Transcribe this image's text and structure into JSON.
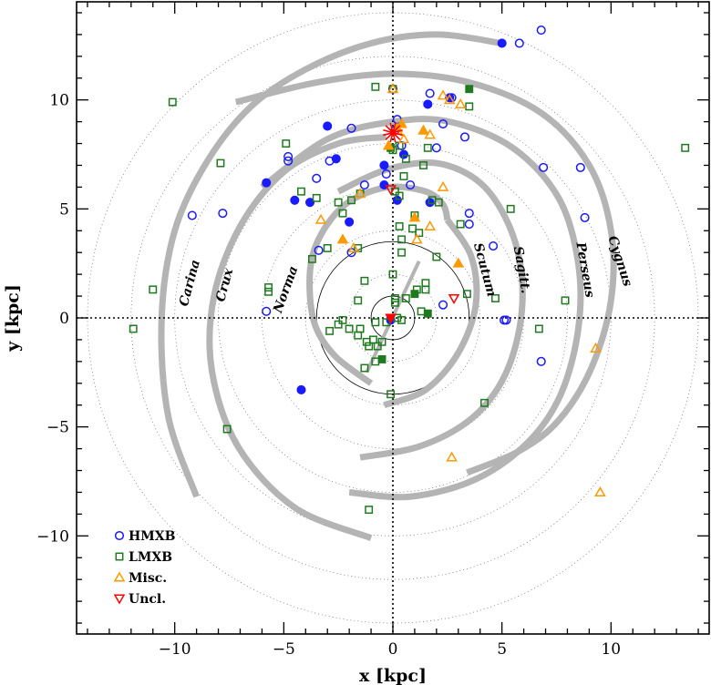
{
  "chart_data": {
    "type": "scatter",
    "title": "",
    "xlabel": "x [kpc]",
    "ylabel": "y [kpc]",
    "xlim": [
      -14.5,
      14.5
    ],
    "ylim": [
      -14.5,
      14.5
    ],
    "xticks": [
      -10,
      -5,
      0,
      5,
      10
    ],
    "yticks": [
      -10,
      -5,
      0,
      5,
      10
    ],
    "grid": false,
    "legend_position": "bottom-left",
    "colors": {
      "HMXB": "#1a1aff",
      "LMXB": "#1f7a1f",
      "Misc": "#ff9900",
      "Uncl": "#ff0000",
      "arms": "#b4b4b4",
      "sun": "#ff0000"
    },
    "sun_position": [
      0,
      8.5
    ],
    "dotted_circle_radii": [
      2,
      4,
      6,
      8,
      10,
      12,
      14
    ],
    "solid_circle_radii": [
      1,
      3.5
    ],
    "arms": [
      {
        "name": "Carina",
        "label_at": [
          -9.3,
          1.6
        ],
        "points": [
          [
            -9.0,
            -8.2
          ],
          [
            -10.3,
            -4.5
          ],
          [
            -10.6,
            0.0
          ],
          [
            -10.0,
            4.0
          ],
          [
            -8.5,
            7.2
          ],
          [
            -6.5,
            9.7
          ],
          [
            -4.0,
            11.4
          ],
          [
            -1.0,
            12.6
          ],
          [
            2.0,
            13.0
          ],
          [
            5.0,
            12.6
          ]
        ]
      },
      {
        "name": "Crux",
        "label_at": [
          -7.7,
          1.5
        ],
        "points": [
          [
            -1.0,
            -10.1
          ],
          [
            -4.5,
            -8.7
          ],
          [
            -7.1,
            -5.9
          ],
          [
            -8.3,
            -2.4
          ],
          [
            -8.2,
            1.0
          ],
          [
            -7.0,
            4.2
          ],
          [
            -5.0,
            6.7
          ],
          [
            -2.5,
            8.0
          ],
          [
            -0.3,
            8.3
          ]
        ]
      },
      {
        "name": "Norma",
        "label_at": [
          -4.9,
          1.3
        ],
        "points": [
          [
            -1.0,
            -3.0
          ],
          [
            -2.6,
            -1.8
          ],
          [
            -3.5,
            -0.5
          ],
          [
            -3.8,
            1.0
          ],
          [
            -3.7,
            2.8
          ],
          [
            -3.0,
            4.3
          ],
          [
            -1.9,
            5.4
          ],
          [
            -0.2,
            6.0
          ],
          [
            1.5,
            5.8
          ],
          [
            2.3,
            5.2
          ],
          [
            2.5,
            4.5
          ]
        ]
      },
      {
        "name": "Scutum",
        "label_at": [
          4.2,
          2.2
        ],
        "points": [
          [
            2.5,
            4.5
          ],
          [
            3.6,
            2.8
          ],
          [
            3.8,
            0.6
          ],
          [
            3.0,
            -1.6
          ],
          [
            1.5,
            -3.3
          ],
          [
            -0.4,
            -4.0
          ]
        ]
      },
      {
        "name": "Sagitt.",
        "label_at": [
          5.9,
          2.2
        ],
        "points": [
          [
            -2.5,
            5.8
          ],
          [
            -0.3,
            6.8
          ],
          [
            2.0,
            7.1
          ],
          [
            4.0,
            6.2
          ],
          [
            5.3,
            4.3
          ],
          [
            5.9,
            2.0
          ],
          [
            5.8,
            -0.5
          ],
          [
            5.0,
            -2.9
          ],
          [
            3.5,
            -4.7
          ],
          [
            1.2,
            -5.9
          ],
          [
            -1.5,
            -6.4
          ]
        ]
      },
      {
        "name": "Perseus",
        "label_at": [
          8.8,
          2.2
        ],
        "points": [
          [
            -6.0,
            6.0
          ],
          [
            -3.0,
            8.2
          ],
          [
            0.0,
            9.0
          ],
          [
            2.6,
            9.0
          ],
          [
            5.5,
            7.8
          ],
          [
            7.6,
            5.5
          ],
          [
            8.5,
            2.5
          ],
          [
            8.5,
            -0.5
          ],
          [
            7.7,
            -3.5
          ],
          [
            6.2,
            -5.7
          ],
          [
            3.8,
            -7.4
          ],
          [
            0.8,
            -8.2
          ],
          [
            -2.0,
            -8.0
          ]
        ]
      },
      {
        "name": "Cygnus",
        "label_at": [
          10.4,
          2.6
        ],
        "points": [
          [
            -7.2,
            9.9
          ],
          [
            -3.5,
            10.8
          ],
          [
            0.0,
            11.2
          ],
          [
            3.5,
            10.8
          ],
          [
            6.8,
            9.4
          ],
          [
            9.0,
            7.0
          ],
          [
            10.0,
            4.0
          ],
          [
            10.0,
            0.8
          ],
          [
            9.1,
            -2.3
          ],
          [
            7.6,
            -4.7
          ],
          [
            5.8,
            -6.1
          ],
          [
            3.4,
            -7.1
          ]
        ]
      }
    ],
    "bar": {
      "points": [
        [
          -1.2,
          -2.5
        ],
        [
          1.2,
          2.6
        ]
      ]
    },
    "legend": [
      {
        "key": "HMXB",
        "label": "HMXB",
        "marker": "circle"
      },
      {
        "key": "LMXB",
        "label": "LMXB",
        "marker": "square"
      },
      {
        "key": "Misc",
        "label": "Misc.",
        "marker": "triangle-up"
      },
      {
        "key": "Uncl",
        "label": "Uncl.",
        "marker": "triangle-down"
      }
    ],
    "series": [
      {
        "key": "HMXB",
        "marker": "circle",
        "open": [
          [
            -9.2,
            4.7
          ],
          [
            -7.8,
            4.8
          ],
          [
            -5.8,
            0.3
          ],
          [
            -4.8,
            7.2
          ],
          [
            -4.8,
            7.4
          ],
          [
            -3.5,
            6.4
          ],
          [
            -3.4,
            3.1
          ],
          [
            -2.9,
            7.2
          ],
          [
            -1.9,
            8.7
          ],
          [
            -1.9,
            3.0
          ],
          [
            -1.3,
            6.1
          ],
          [
            -0.3,
            6.6
          ],
          [
            0.0,
            10.5
          ],
          [
            0.1,
            8.6
          ],
          [
            0.2,
            9.1
          ],
          [
            0.4,
            7.9
          ],
          [
            0.8,
            6.1
          ],
          [
            1.7,
            10.3
          ],
          [
            2.0,
            7.8
          ],
          [
            2.3,
            8.9
          ],
          [
            2.7,
            10.1
          ],
          [
            3.3,
            8.3
          ],
          [
            3.5,
            4.8
          ],
          [
            3.5,
            4.3
          ],
          [
            4.6,
            3.3
          ],
          [
            5.1,
            -0.1
          ],
          [
            5.2,
            -0.1
          ],
          [
            5.8,
            12.6
          ],
          [
            6.8,
            13.2
          ],
          [
            6.8,
            -2.0
          ],
          [
            6.9,
            6.9
          ],
          [
            8.6,
            6.9
          ],
          [
            8.8,
            4.6
          ],
          [
            2.3,
            0.6
          ]
        ],
        "filled": [
          [
            5.0,
            12.6
          ],
          [
            -3.0,
            8.8
          ],
          [
            -2.6,
            7.3
          ],
          [
            -5.8,
            6.2
          ],
          [
            -2.0,
            4.4
          ],
          [
            -4.5,
            5.4
          ],
          [
            -3.8,
            5.3
          ],
          [
            -4.2,
            -3.3
          ],
          [
            -0.4,
            7.0
          ],
          [
            -0.4,
            6.1
          ],
          [
            0.5,
            7.5
          ],
          [
            0.2,
            5.4
          ],
          [
            1.6,
            9.8
          ],
          [
            2.6,
            10.1
          ],
          [
            1.7,
            5.3
          ],
          [
            -0.1,
            -0.1
          ]
        ]
      },
      {
        "key": "LMXB",
        "marker": "square",
        "open": [
          [
            -10.1,
            9.9
          ],
          [
            -7.9,
            7.1
          ],
          [
            -4.9,
            8.0
          ],
          [
            -4.2,
            5.8
          ],
          [
            -3.5,
            5.5
          ],
          [
            -3.7,
            2.7
          ],
          [
            -3.0,
            3.2
          ],
          [
            -2.5,
            5.3
          ],
          [
            -2.3,
            4.8
          ],
          [
            -1.9,
            5.4
          ],
          [
            -1.5,
            5.7
          ],
          [
            -1.6,
            3.2
          ],
          [
            -1.3,
            1.7
          ],
          [
            -1.6,
            0.8
          ],
          [
            -2.3,
            -0.1
          ],
          [
            -2.5,
            -0.3
          ],
          [
            -2.9,
            -0.6
          ],
          [
            -2.0,
            -0.5
          ],
          [
            -1.5,
            -0.5
          ],
          [
            -1.6,
            -0.8
          ],
          [
            -1.2,
            -1.1
          ],
          [
            -0.8,
            -0.2
          ],
          [
            -0.3,
            -0.2
          ],
          [
            -0.5,
            -1.1
          ],
          [
            -0.9,
            -1.0
          ],
          [
            -0.7,
            -1.3
          ],
          [
            -1.1,
            -1.3
          ],
          [
            -0.8,
            -2.0
          ],
          [
            -1.3,
            -2.3
          ],
          [
            -1.1,
            -8.8
          ],
          [
            -7.6,
            -5.1
          ],
          [
            -5.7,
            1.4
          ],
          [
            -5.7,
            1.2
          ],
          [
            -11.0,
            1.3
          ],
          [
            -11.9,
            -0.5
          ],
          [
            -0.8,
            10.6
          ],
          [
            0.0,
            10.5
          ],
          [
            0.0,
            7.7
          ],
          [
            0.3,
            7.9
          ],
          [
            0.6,
            7.3
          ],
          [
            0.5,
            6.5
          ],
          [
            0.1,
            5.8
          ],
          [
            0.3,
            5.6
          ],
          [
            0.3,
            4.2
          ],
          [
            0.4,
            3.6
          ],
          [
            0.4,
            3.0
          ],
          [
            0.9,
            4.1
          ],
          [
            1.2,
            3.9
          ],
          [
            1.0,
            4.7
          ],
          [
            1.6,
            7.8
          ],
          [
            1.4,
            7.0
          ],
          [
            1.8,
            5.4
          ],
          [
            2.1,
            5.3
          ],
          [
            2.0,
            2.8
          ],
          [
            1.5,
            1.6
          ],
          [
            1.5,
            1.3
          ],
          [
            1.1,
            1.3
          ],
          [
            0.6,
            0.9
          ],
          [
            0.1,
            0.9
          ],
          [
            0.1,
            0.7
          ],
          [
            0.2,
            0.0
          ],
          [
            0.4,
            -0.1
          ],
          [
            1.3,
            0.3
          ],
          [
            0.0,
            2.0
          ],
          [
            -0.1,
            -3.5
          ],
          [
            3.4,
            1.1
          ],
          [
            4.2,
            -3.9
          ],
          [
            3.5,
            9.7
          ],
          [
            3.1,
            4.3
          ],
          [
            4.7,
            0.9
          ],
          [
            5.4,
            5.0
          ],
          [
            6.7,
            -0.5
          ],
          [
            7.9,
            0.8
          ],
          [
            13.4,
            7.8
          ]
        ],
        "filled": [
          [
            3.5,
            10.5
          ],
          [
            -0.1,
            7.8
          ],
          [
            1.0,
            1.1
          ],
          [
            1.6,
            0.2
          ],
          [
            -0.5,
            -1.9
          ]
        ]
      },
      {
        "key": "Misc",
        "marker": "triangle-up",
        "open": [
          [
            -3.3,
            4.5
          ],
          [
            -1.8,
            3.2
          ],
          [
            -1.5,
            5.7
          ],
          [
            0.0,
            10.5
          ],
          [
            0.2,
            8.6
          ],
          [
            0.5,
            8.2
          ],
          [
            1.7,
            8.4
          ],
          [
            2.3,
            10.2
          ],
          [
            2.6,
            10.0
          ],
          [
            3.1,
            9.8
          ],
          [
            2.3,
            6.0
          ],
          [
            1.1,
            3.6
          ],
          [
            1.7,
            4.2
          ],
          [
            2.7,
            -6.4
          ],
          [
            9.3,
            -1.4
          ],
          [
            9.5,
            -8.0
          ]
        ],
        "filled": [
          [
            -0.2,
            7.9
          ],
          [
            0.2,
            8.7
          ],
          [
            0.4,
            8.9
          ],
          [
            1.4,
            8.6
          ],
          [
            1.0,
            4.6
          ],
          [
            -2.3,
            3.6
          ],
          [
            3.0,
            2.5
          ]
        ]
      },
      {
        "key": "Uncl",
        "marker": "triangle-down",
        "open": [
          [
            2.8,
            0.9
          ],
          [
            -0.1,
            5.9
          ]
        ],
        "filled": [
          [
            -0.1,
            0.0
          ]
        ]
      }
    ]
  }
}
